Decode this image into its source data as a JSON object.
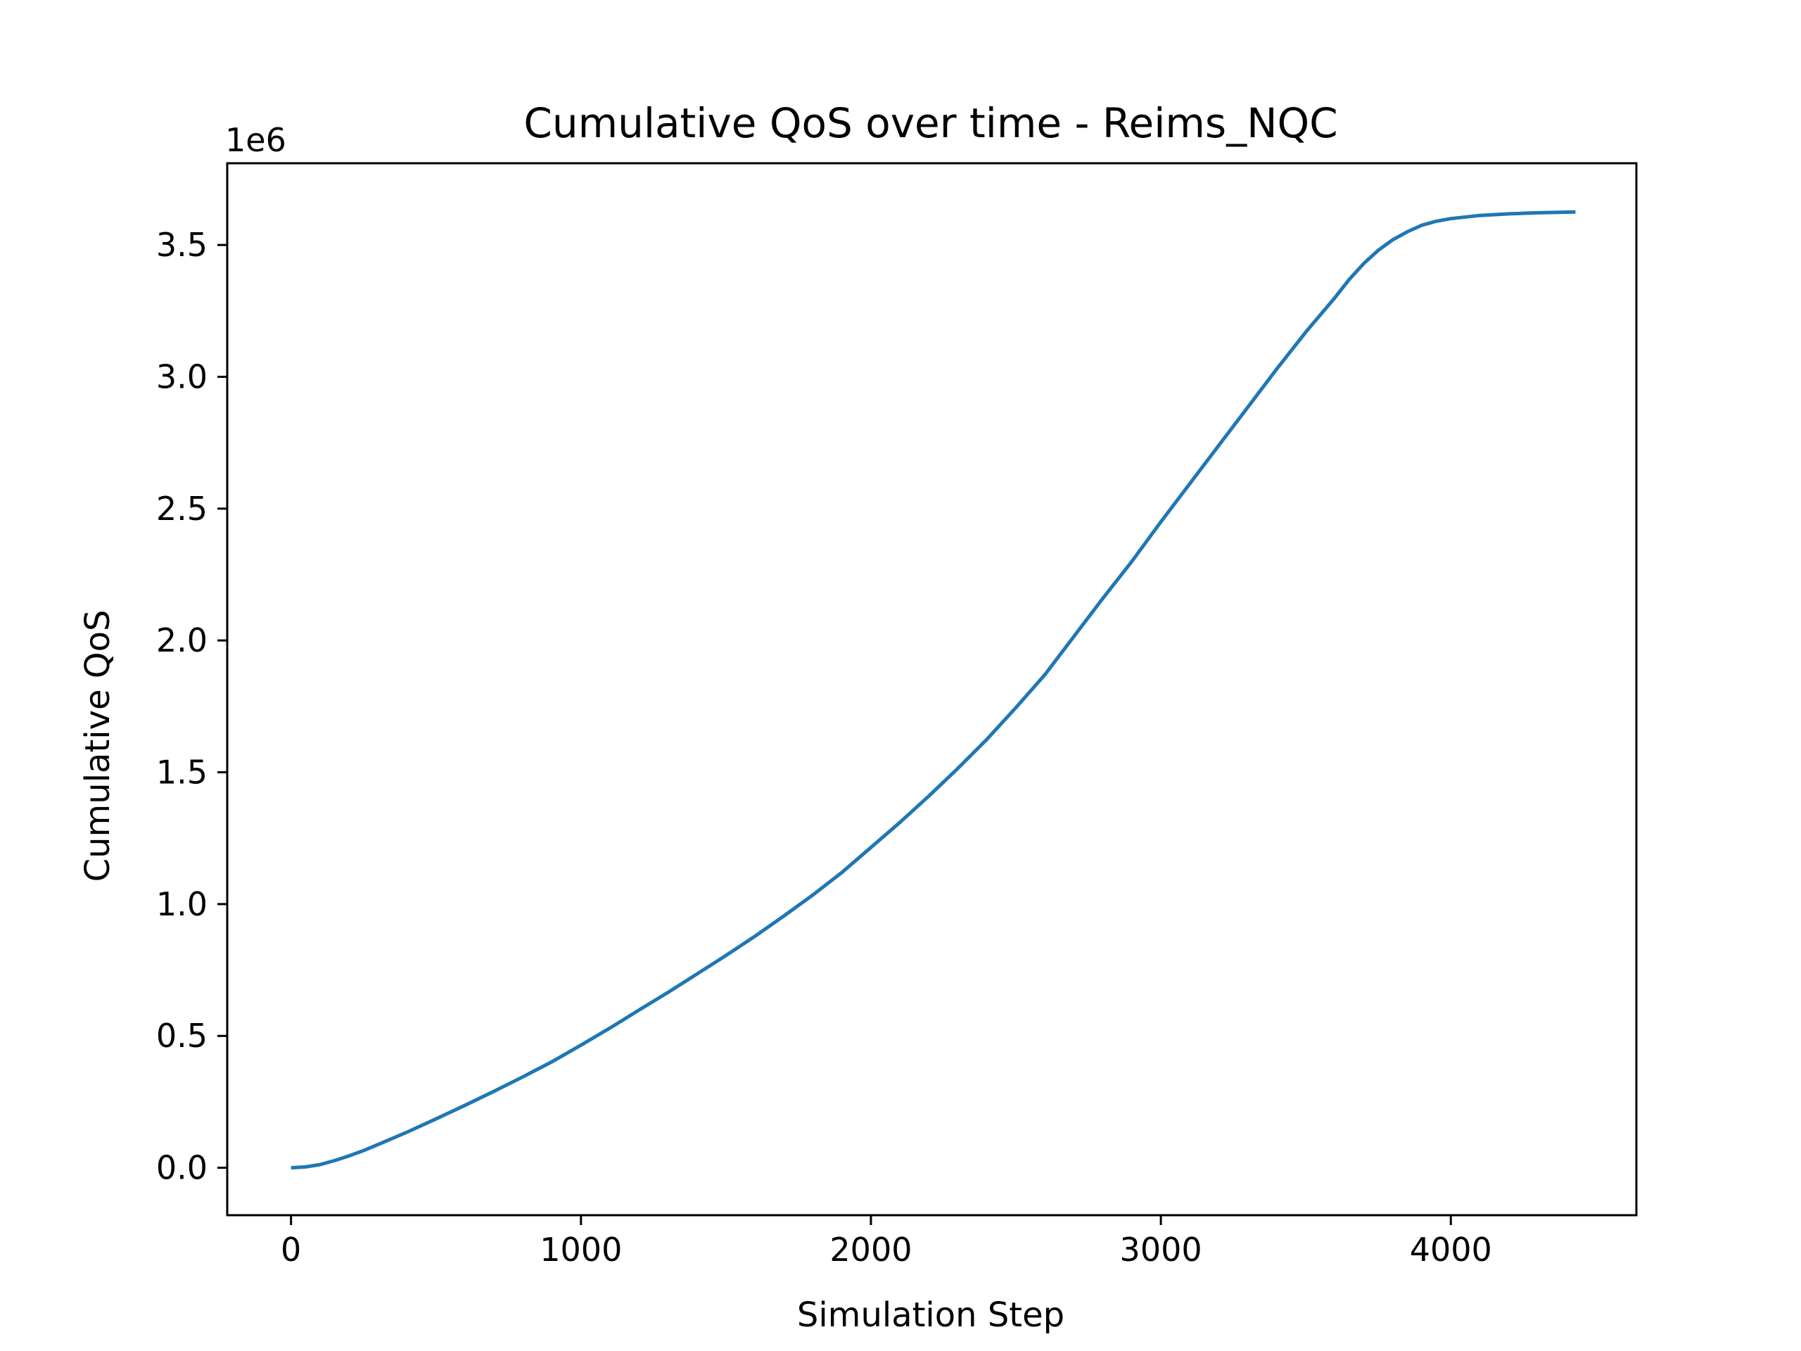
{
  "chart_data": {
    "type": "line",
    "title": "Cumulative QoS over time - Reims_NQC",
    "xlabel": "Simulation Step",
    "ylabel": "Cumulative QoS",
    "y_offset_label": "1e6",
    "xlim": [
      -220,
      4640
    ],
    "ylim": [
      -180000,
      3810000
    ],
    "x_ticks": [
      0,
      1000,
      2000,
      3000,
      4000
    ],
    "x_tick_labels": [
      "0",
      "1000",
      "2000",
      "3000",
      "4000"
    ],
    "y_ticks": [
      0,
      500000,
      1000000,
      1500000,
      2000000,
      2500000,
      3000000,
      3500000
    ],
    "y_tick_labels": [
      "0.0",
      "0.5",
      "1.0",
      "1.5",
      "2.0",
      "2.5",
      "3.0",
      "3.5"
    ],
    "grid": false,
    "legend": "none",
    "line_color": "#1f77b4",
    "series": [
      {
        "x": [
          0,
          50,
          100,
          150,
          200,
          250,
          300,
          400,
          500,
          600,
          700,
          800,
          900,
          1000,
          1100,
          1200,
          1300,
          1400,
          1500,
          1600,
          1700,
          1800,
          1900,
          2000,
          2100,
          2200,
          2300,
          2400,
          2500,
          2600,
          2700,
          2800,
          2900,
          3000,
          3100,
          3200,
          3300,
          3400,
          3500,
          3600,
          3650,
          3700,
          3750,
          3800,
          3850,
          3900,
          3950,
          4000,
          4100,
          4200,
          4300,
          4430
        ],
        "y": [
          0,
          3000,
          12000,
          27000,
          45000,
          65000,
          88000,
          135000,
          185000,
          237000,
          290000,
          345000,
          402000,
          465000,
          530000,
          598000,
          665000,
          735000,
          805000,
          878000,
          955000,
          1035000,
          1120000,
          1215000,
          1310000,
          1410000,
          1515000,
          1625000,
          1745000,
          1870000,
          2015000,
          2160000,
          2300000,
          2450000,
          2595000,
          2740000,
          2885000,
          3030000,
          3170000,
          3300000,
          3370000,
          3430000,
          3480000,
          3520000,
          3550000,
          3575000,
          3590000,
          3600000,
          3612000,
          3618000,
          3622000,
          3625000
        ]
      }
    ]
  }
}
